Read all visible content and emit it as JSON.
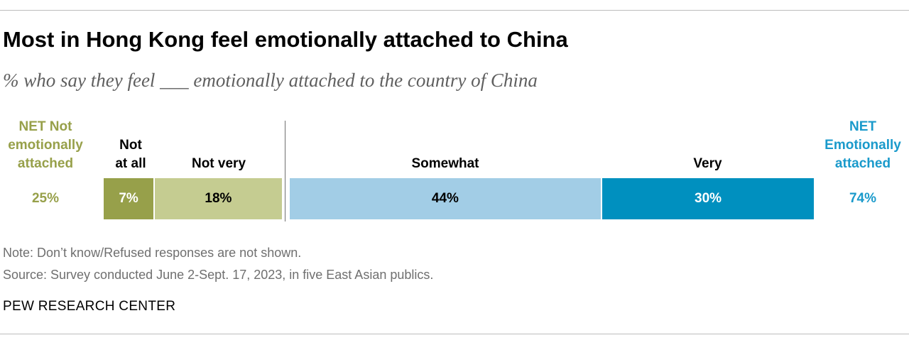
{
  "header": {
    "title": "Most in Hong Kong feel emotionally attached to China",
    "subtitle": "% who say they feel ___ emotionally attached to the country of China"
  },
  "colors": {
    "net_not": "#97a04a",
    "not_at_all": "#97a04a",
    "not_very": "#c5cc91",
    "somewhat": "#a2cde6",
    "very": "#0090bf",
    "net_yes": "#1a9acb"
  },
  "chart_data": {
    "type": "bar",
    "orientation": "horizontal-stacked",
    "title": "Most in Hong Kong feel emotionally attached to China",
    "subtitle": "% who say they feel ___ emotionally attached to the country of China",
    "categories": [
      "Hong Kong"
    ],
    "series": [
      {
        "name": "Not at all",
        "values": [
          7
        ],
        "label": "7%"
      },
      {
        "name": "Not very",
        "values": [
          18
        ],
        "label": "18%"
      },
      {
        "name": "Somewhat",
        "values": [
          44
        ],
        "label": "44%"
      },
      {
        "name": "Very",
        "values": [
          30
        ],
        "label": "30%"
      }
    ],
    "net_not": {
      "header": "NET Not\nemotionally\nattached",
      "value": 25,
      "label": "25%"
    },
    "net_yes": {
      "header": "NET\nEmotionally\nattached",
      "value": 74,
      "label": "74%"
    },
    "column_headers": {
      "not_at_all": "Not\nat all",
      "not_very": "Not very",
      "somewhat": "Somewhat",
      "very": "Very"
    }
  },
  "footer": {
    "note": "Note: Don’t know/Refused responses are not shown.",
    "source": "Source: Survey conducted June 2-Sept. 17, 2023, in five East Asian publics.",
    "credit": "PEW RESEARCH CENTER"
  }
}
